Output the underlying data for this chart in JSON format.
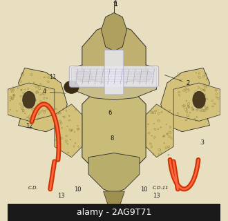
{
  "background_color": "#e8dfc0",
  "watermark_text": "alamy - 2AG9T71",
  "watermark_bg": "#1a1a1a",
  "watermark_text_color": "#ffffff",
  "watermark_fontsize": 9,
  "figure_width": 3.3,
  "figure_height": 3.2,
  "dpi": 100,
  "bone_base_color": "#d4c27a",
  "bone_spongy_color": "#c8b860",
  "bone_dark_color": "#8a7a45",
  "ligament_color": "#e8e8f0",
  "artery_color": "#cc3300",
  "artery_highlight": "#ff6644",
  "line_color": "#2a2a2a",
  "label_color": "#1a1a1a",
  "label_fontsize": 6
}
